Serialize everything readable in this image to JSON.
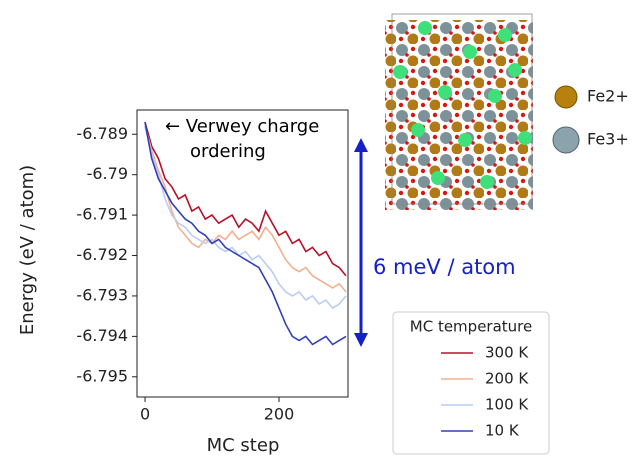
{
  "chart_data": {
    "type": "line",
    "xlabel": "MC step",
    "ylabel": "Energy (eV / atom)",
    "x": [
      0,
      10,
      20,
      30,
      40,
      50,
      60,
      70,
      80,
      90,
      100,
      110,
      120,
      130,
      140,
      150,
      160,
      170,
      180,
      190,
      200,
      210,
      220,
      230,
      240,
      250,
      260,
      270,
      280,
      290,
      300
    ],
    "series": [
      {
        "name": "300 K",
        "color": "#b5122a",
        "values": [
          -6.7887,
          -6.7893,
          -6.7896,
          -6.7901,
          -6.7903,
          -6.7906,
          -6.7905,
          -6.7909,
          -6.7908,
          -6.7911,
          -6.791,
          -6.7912,
          -6.7911,
          -6.791,
          -6.7913,
          -6.7911,
          -6.7912,
          -6.7914,
          -6.7909,
          -6.7912,
          -6.7915,
          -6.7914,
          -6.7917,
          -6.7916,
          -6.7919,
          -6.7918,
          -6.792,
          -6.7919,
          -6.7922,
          -6.7923,
          -6.7925
        ]
      },
      {
        "name": "200 K",
        "color": "#f2b08f",
        "values": [
          -6.7888,
          -6.7894,
          -6.7899,
          -6.7903,
          -6.7909,
          -6.7913,
          -6.7915,
          -6.7917,
          -6.7918,
          -6.7916,
          -6.7917,
          -6.7915,
          -6.7916,
          -6.7914,
          -6.7916,
          -6.7915,
          -6.7914,
          -6.7916,
          -6.7913,
          -6.7915,
          -6.7918,
          -6.7921,
          -6.7923,
          -6.7924,
          -6.7923,
          -6.7925,
          -6.7926,
          -6.7927,
          -6.7928,
          -6.7927,
          -6.7929
        ]
      },
      {
        "name": "100 K",
        "color": "#b9cdf4",
        "values": [
          -6.7888,
          -6.7895,
          -6.79,
          -6.7906,
          -6.791,
          -6.7912,
          -6.7913,
          -6.7915,
          -6.7916,
          -6.7917,
          -6.7916,
          -6.7918,
          -6.7919,
          -6.7918,
          -6.792,
          -6.7919,
          -6.7921,
          -6.792,
          -6.7922,
          -6.7924,
          -6.7927,
          -6.7929,
          -6.793,
          -6.7929,
          -6.7931,
          -6.793,
          -6.7932,
          -6.7931,
          -6.7933,
          -6.7932,
          -6.793
        ]
      },
      {
        "name": "10 K",
        "color": "#3340b8",
        "values": [
          -6.7887,
          -6.7896,
          -6.7901,
          -6.7904,
          -6.7907,
          -6.7909,
          -6.7911,
          -6.7912,
          -6.7914,
          -6.7915,
          -6.7917,
          -6.7916,
          -6.7918,
          -6.7919,
          -6.792,
          -6.7921,
          -6.7922,
          -6.7923,
          -6.7926,
          -6.7929,
          -6.7933,
          -6.7937,
          -6.794,
          -6.7941,
          -6.794,
          -6.7942,
          -6.7941,
          -6.794,
          -6.7942,
          -6.7941,
          -6.794
        ]
      }
    ],
    "xlim": [
      -12,
      303
    ],
    "xticks": [
      0,
      200
    ],
    "ylim": [
      -6.7955,
      -6.7884
    ],
    "yticks": [
      -6.789,
      -6.79,
      -6.791,
      -6.792,
      -6.793,
      -6.794,
      -6.795
    ],
    "legend_title": "MC temperature",
    "legend": "lower right",
    "annotations": [
      "← Verwey charge",
      "ordering"
    ],
    "range_label": "6 meV / atom"
  },
  "structure_legend": [
    "Fe2+",
    "Fe3+"
  ]
}
